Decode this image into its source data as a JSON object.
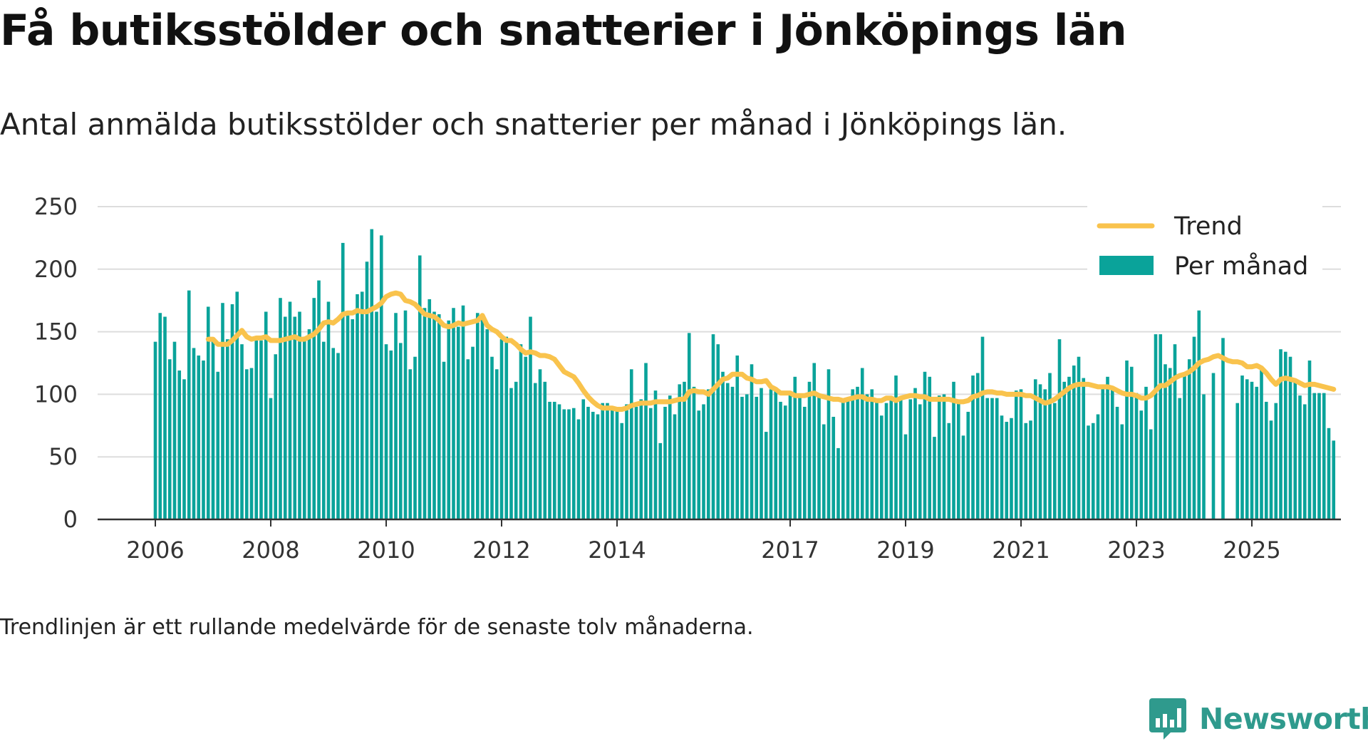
{
  "chart_data": {
    "type": "bar",
    "title": "Få butiksstölder och snatterier i Jönköpings län",
    "subtitle": "Antal anmälda butiksstölder och snatterier per månad i Jönköpings län.",
    "footnote": "Trendlinjen är ett rullande medelvärde för de senaste tolv månaderna.",
    "x_start": "2006-01",
    "ylim": [
      0,
      250
    ],
    "yticks": [
      0,
      50,
      100,
      150,
      200,
      250
    ],
    "xticks": [
      "2006",
      "2008",
      "2010",
      "2012",
      "2014",
      "2017",
      "2019",
      "2021",
      "2023",
      "2025"
    ],
    "grid": true,
    "legend_position": "top-right",
    "colors": {
      "bars": "#0aa39a",
      "trend": "#f9c34d",
      "grid": "#dddddd",
      "axis": "#333333"
    },
    "series": [
      {
        "name": "Per månad",
        "type": "bar",
        "values": [
          142,
          165,
          162,
          128,
          142,
          119,
          112,
          183,
          137,
          131,
          127,
          170,
          145,
          118,
          173,
          144,
          172,
          182,
          140,
          120,
          121,
          143,
          143,
          166,
          97,
          132,
          177,
          162,
          174,
          162,
          166,
          146,
          152,
          177,
          191,
          142,
          174,
          137,
          133,
          221,
          163,
          160,
          180,
          182,
          206,
          232,
          166,
          227,
          140,
          135,
          165,
          141,
          167,
          120,
          130,
          211,
          169,
          176,
          166,
          164,
          126,
          159,
          169,
          154,
          171,
          128,
          138,
          165,
          160,
          152,
          130,
          120,
          144,
          146,
          105,
          110,
          140,
          130,
          162,
          109,
          120,
          110,
          94,
          94,
          92,
          88,
          88,
          89,
          80,
          96,
          90,
          86,
          84,
          93,
          93,
          90,
          88,
          77,
          92,
          120,
          90,
          96,
          125,
          89,
          103,
          61,
          90,
          99,
          84,
          108,
          110,
          149,
          106,
          87,
          92,
          104,
          148,
          140,
          118,
          109,
          106,
          131,
          98,
          100,
          124,
          98,
          105,
          70,
          104,
          104,
          94,
          91,
          101,
          114,
          98,
          90,
          110,
          125,
          98,
          76,
          120,
          82,
          57,
          96,
          95,
          104,
          106,
          121,
          100,
          104,
          96,
          83,
          93,
          95,
          115,
          96,
          68,
          96,
          105,
          92,
          118,
          114,
          66,
          99,
          100,
          77,
          110,
          95,
          67,
          86,
          115,
          117,
          146,
          97,
          97,
          97,
          83,
          78,
          81,
          103,
          104,
          77,
          79,
          112,
          108,
          104,
          117,
          93,
          144,
          110,
          114,
          123,
          130,
          113,
          75,
          77,
          84,
          105,
          114,
          106,
          90,
          76,
          127,
          122,
          101,
          87,
          106,
          72,
          148,
          148,
          124,
          121,
          140,
          97,
          117,
          128,
          146,
          167,
          100,
          null,
          117,
          0,
          145,
          null,
          null,
          93,
          115,
          112,
          110,
          106,
          120,
          94,
          79,
          93,
          136,
          134,
          130,
          112,
          99,
          92,
          127,
          101,
          101,
          101,
          73,
          63
        ]
      },
      {
        "name": "Trend",
        "type": "line",
        "values": [
          null,
          null,
          null,
          null,
          null,
          null,
          null,
          null,
          null,
          null,
          null,
          144,
          144,
          140,
          140,
          140,
          143,
          147,
          151,
          146,
          144,
          145,
          145,
          146,
          143,
          143,
          143,
          144,
          145,
          146,
          144,
          144,
          146,
          148,
          152,
          157,
          158,
          157,
          160,
          164,
          165,
          165,
          167,
          166,
          166,
          168,
          170,
          173,
          178,
          180,
          181,
          180,
          175,
          174,
          172,
          168,
          164,
          163,
          162,
          159,
          155,
          154,
          155,
          157,
          156,
          157,
          158,
          159,
          163,
          155,
          152,
          150,
          146,
          143,
          143,
          140,
          136,
          133,
          134,
          133,
          131,
          131,
          130,
          128,
          123,
          118,
          116,
          114,
          109,
          103,
          98,
          94,
          91,
          89,
          89,
          89,
          88,
          88,
          89,
          91,
          92,
          93,
          93,
          93,
          94,
          94,
          94,
          94,
          95,
          96,
          96,
          102,
          103,
          102,
          102,
          100,
          104,
          108,
          112,
          113,
          116,
          116,
          116,
          113,
          112,
          110,
          110,
          111,
          106,
          104,
          101,
          101,
          101,
          99,
          99,
          99,
          100,
          101,
          99,
          98,
          97,
          96,
          96,
          95,
          96,
          97,
          98,
          98,
          96,
          96,
          95,
          95,
          97,
          97,
          95,
          97,
          98,
          99,
          99,
          98,
          98,
          96,
          96,
          96,
          96,
          96,
          95,
          94,
          94,
          95,
          98,
          99,
          101,
          102,
          102,
          101,
          101,
          100,
          100,
          100,
          100,
          99,
          99,
          97,
          95,
          93,
          94,
          96,
          99,
          102,
          105,
          107,
          108,
          108,
          108,
          107,
          106,
          106,
          106,
          105,
          103,
          101,
          100,
          100,
          99,
          97,
          97,
          99,
          103,
          107,
          107,
          110,
          113,
          115,
          116,
          118,
          121,
          125,
          127,
          128,
          130,
          131,
          129,
          127,
          126,
          126,
          125,
          122,
          122,
          123,
          121,
          117,
          112,
          108,
          112,
          113,
          112,
          111,
          109,
          107,
          108,
          108,
          107,
          106,
          105,
          104
        ]
      }
    ]
  },
  "branding": {
    "name": "Newsworthy",
    "icon": "bar-chart-speech-bubble-icon"
  }
}
